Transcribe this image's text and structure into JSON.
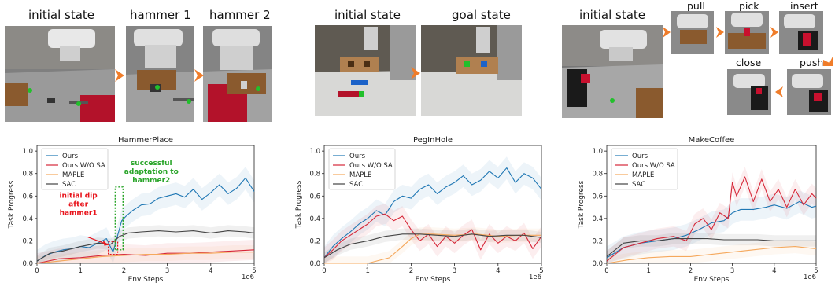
{
  "scenes": {
    "hammer": {
      "captions": [
        "initial state",
        "hammer 1",
        "hammer 2"
      ]
    },
    "peg": {
      "captions": [
        "initial state",
        "goal state"
      ]
    },
    "coffee": {
      "captions": [
        "initial state",
        "pull",
        "pick",
        "insert",
        "close",
        "push"
      ]
    }
  },
  "colors": {
    "ours": "#1f77b4",
    "ours_wo_sa": "#d62738",
    "maple": "#f5a85c",
    "sac": "#444444",
    "arrow": "#f07d2a",
    "annotation_red": "#e8141c",
    "annotation_green": "#2aa52a"
  },
  "chart_data": [
    {
      "type": "line",
      "title": "HammerPlace",
      "xlabel": "Env Steps",
      "ylabel": "Task Progress",
      "x_scale_label": "1e6",
      "xlim": [
        0,
        5
      ],
      "ylim": [
        0,
        1.05
      ],
      "xticks": [
        "0",
        "1",
        "2",
        "3",
        "4",
        "5"
      ],
      "yticks": [
        "0.0",
        "0.2",
        "0.4",
        "0.6",
        "0.8",
        "1.0"
      ],
      "legend_position": "upper-left",
      "annotations": [
        {
          "text": "initial dip\nafter\nhammer1",
          "color": "#e8141c",
          "x": 1.75,
          "y": 0.15
        },
        {
          "text": "successful\nadaptation to\nhammer2",
          "color": "#2aa52a",
          "x": 1.95,
          "y": 0.62
        }
      ],
      "series": [
        {
          "name": "Ours",
          "color": "#1f77b4",
          "x": [
            0,
            0.2,
            0.4,
            0.6,
            0.8,
            1.0,
            1.2,
            1.4,
            1.6,
            1.75,
            1.85,
            1.95,
            2.05,
            2.2,
            2.4,
            2.6,
            2.8,
            3.0,
            3.2,
            3.4,
            3.6,
            3.8,
            4.0,
            4.2,
            4.4,
            4.6,
            4.8,
            5.0
          ],
          "y": [
            0.02,
            0.07,
            0.1,
            0.12,
            0.13,
            0.15,
            0.14,
            0.18,
            0.22,
            0.1,
            0.24,
            0.38,
            0.42,
            0.47,
            0.52,
            0.53,
            0.58,
            0.6,
            0.62,
            0.59,
            0.66,
            0.57,
            0.63,
            0.7,
            0.62,
            0.67,
            0.76,
            0.64
          ]
        },
        {
          "name": "Ours W/O SA",
          "color": "#d62738",
          "x": [
            0,
            0.5,
            1.0,
            1.5,
            2.0,
            2.5,
            3.0,
            3.5,
            4.0,
            4.5,
            5.0
          ],
          "y": [
            0.0,
            0.04,
            0.05,
            0.07,
            0.08,
            0.07,
            0.09,
            0.09,
            0.1,
            0.11,
            0.12
          ]
        },
        {
          "name": "MAPLE",
          "color": "#f5a85c",
          "x": [
            0,
            0.5,
            1.0,
            1.5,
            2.0,
            2.5,
            3.0,
            3.5,
            4.0,
            4.5,
            5.0
          ],
          "y": [
            0.0,
            0.02,
            0.04,
            0.06,
            0.07,
            0.08,
            0.08,
            0.09,
            0.09,
            0.1,
            0.1
          ]
        },
        {
          "name": "SAC",
          "color": "#444444",
          "x": [
            0,
            0.3,
            0.6,
            1.0,
            1.4,
            1.7,
            1.9,
            2.1,
            2.4,
            2.8,
            3.2,
            3.6,
            4.0,
            4.4,
            4.8,
            5.0
          ],
          "y": [
            0.02,
            0.09,
            0.11,
            0.15,
            0.18,
            0.17,
            0.24,
            0.27,
            0.28,
            0.29,
            0.28,
            0.29,
            0.27,
            0.29,
            0.28,
            0.27
          ]
        }
      ]
    },
    {
      "type": "line",
      "title": "PegInHole",
      "xlabel": "Env Steps",
      "ylabel": "Task Progress",
      "x_scale_label": "1e6",
      "xlim": [
        0,
        5
      ],
      "ylim": [
        0,
        1.05
      ],
      "xticks": [
        "0",
        "1",
        "2",
        "3",
        "4",
        "5"
      ],
      "yticks": [
        "0.0",
        "0.2",
        "0.4",
        "0.6",
        "0.8",
        "1.0"
      ],
      "legend_position": "upper-left",
      "series": [
        {
          "name": "Ours",
          "color": "#1f77b4",
          "x": [
            0,
            0.2,
            0.4,
            0.6,
            0.8,
            1.0,
            1.2,
            1.4,
            1.6,
            1.8,
            2.0,
            2.2,
            2.4,
            2.6,
            2.8,
            3.0,
            3.2,
            3.4,
            3.6,
            3.8,
            4.0,
            4.2,
            4.4,
            4.6,
            4.8,
            5.0
          ],
          "y": [
            0.05,
            0.15,
            0.22,
            0.28,
            0.35,
            0.4,
            0.47,
            0.43,
            0.55,
            0.6,
            0.58,
            0.66,
            0.7,
            0.62,
            0.68,
            0.72,
            0.78,
            0.7,
            0.74,
            0.82,
            0.76,
            0.85,
            0.72,
            0.8,
            0.76,
            0.66
          ]
        },
        {
          "name": "Ours W/O SA",
          "color": "#d62738",
          "x": [
            0,
            0.2,
            0.4,
            0.6,
            0.8,
            1.0,
            1.2,
            1.4,
            1.6,
            1.8,
            2.0,
            2.2,
            2.4,
            2.6,
            2.8,
            3.0,
            3.2,
            3.4,
            3.6,
            3.8,
            4.0,
            4.2,
            4.4,
            4.6,
            4.8,
            5.0
          ],
          "y": [
            0.05,
            0.12,
            0.2,
            0.25,
            0.3,
            0.35,
            0.42,
            0.44,
            0.38,
            0.42,
            0.3,
            0.2,
            0.26,
            0.15,
            0.24,
            0.18,
            0.25,
            0.3,
            0.12,
            0.26,
            0.18,
            0.24,
            0.2,
            0.27,
            0.13,
            0.24
          ]
        },
        {
          "name": "MAPLE",
          "color": "#f5a85c",
          "x": [
            0,
            0.5,
            1.0,
            1.5,
            1.8,
            2.0,
            2.2,
            2.5,
            3.0,
            3.5,
            4.0,
            4.5,
            5.0
          ],
          "y": [
            0.0,
            0.0,
            0.0,
            0.05,
            0.15,
            0.22,
            0.26,
            0.26,
            0.25,
            0.26,
            0.24,
            0.25,
            0.25
          ]
        },
        {
          "name": "SAC",
          "color": "#444444",
          "x": [
            0,
            0.3,
            0.6,
            1.0,
            1.4,
            1.8,
            2.2,
            2.6,
            3.0,
            3.4,
            3.8,
            4.2,
            4.6,
            5.0
          ],
          "y": [
            0.05,
            0.12,
            0.17,
            0.2,
            0.24,
            0.26,
            0.26,
            0.25,
            0.24,
            0.26,
            0.24,
            0.25,
            0.25,
            0.23
          ]
        }
      ]
    },
    {
      "type": "line",
      "title": "MakeCoffee",
      "xlabel": "Env Steps",
      "ylabel": "Task Progress",
      "x_scale_label": "1e6",
      "xlim": [
        0,
        5
      ],
      "ylim": [
        0,
        1.05
      ],
      "xticks": [
        "0",
        "1",
        "2",
        "3",
        "4",
        "5"
      ],
      "yticks": [
        "0.0",
        "0.2",
        "0.4",
        "0.6",
        "0.8",
        "1.0"
      ],
      "legend_position": "upper-left",
      "series": [
        {
          "name": "Ours",
          "color": "#1f77b4",
          "x": [
            0,
            0.4,
            0.8,
            1.2,
            1.6,
            1.9,
            2.2,
            2.5,
            2.8,
            3.0,
            3.2,
            3.5,
            3.8,
            4.0,
            4.3,
            4.6,
            4.9,
            5.0
          ],
          "y": [
            0.05,
            0.14,
            0.18,
            0.2,
            0.22,
            0.25,
            0.3,
            0.36,
            0.38,
            0.45,
            0.48,
            0.48,
            0.5,
            0.52,
            0.49,
            0.55,
            0.5,
            0.51
          ]
        },
        {
          "name": "Ours W/O SA",
          "color": "#d62738",
          "x": [
            0,
            0.4,
            0.8,
            1.2,
            1.6,
            1.9,
            2.1,
            2.3,
            2.5,
            2.7,
            2.9,
            3.0,
            3.1,
            3.3,
            3.5,
            3.7,
            3.9,
            4.1,
            4.3,
            4.5,
            4.7,
            4.9,
            5.0
          ],
          "y": [
            0.02,
            0.14,
            0.18,
            0.22,
            0.24,
            0.2,
            0.35,
            0.4,
            0.3,
            0.45,
            0.4,
            0.72,
            0.6,
            0.77,
            0.55,
            0.75,
            0.55,
            0.66,
            0.5,
            0.66,
            0.52,
            0.62,
            0.58
          ]
        },
        {
          "name": "MAPLE",
          "color": "#f5a85c",
          "x": [
            0,
            0.5,
            1.0,
            1.5,
            2.0,
            2.5,
            3.0,
            3.5,
            4.0,
            4.5,
            5.0
          ],
          "y": [
            0.0,
            0.03,
            0.05,
            0.06,
            0.06,
            0.08,
            0.1,
            0.12,
            0.14,
            0.15,
            0.13
          ]
        },
        {
          "name": "SAC",
          "color": "#444444",
          "x": [
            0,
            0.4,
            0.8,
            1.2,
            1.6,
            2.0,
            2.4,
            2.8,
            3.2,
            3.6,
            4.0,
            4.4,
            4.8,
            5.0
          ],
          "y": [
            0.06,
            0.18,
            0.2,
            0.2,
            0.22,
            0.22,
            0.22,
            0.21,
            0.21,
            0.21,
            0.2,
            0.2,
            0.2,
            0.2
          ]
        }
      ]
    }
  ]
}
